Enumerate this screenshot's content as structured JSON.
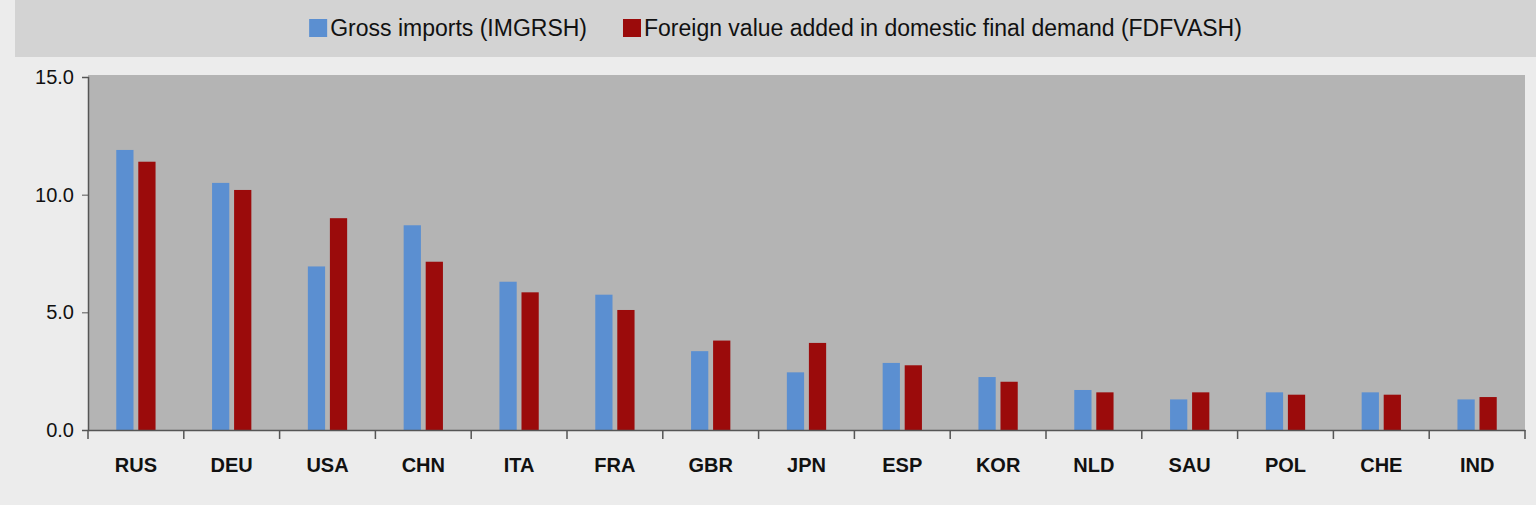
{
  "chart_data": {
    "type": "bar",
    "categories": [
      "RUS",
      "DEU",
      "USA",
      "CHN",
      "ITA",
      "FRA",
      "GBR",
      "JPN",
      "ESP",
      "KOR",
      "NLD",
      "SAU",
      "POL",
      "CHE",
      "IND"
    ],
    "series": [
      {
        "name": "Gross imports (IMGRSH)",
        "color": "#5b8fd1",
        "values": [
          11.9,
          10.5,
          6.95,
          8.7,
          6.3,
          5.75,
          3.35,
          2.45,
          2.85,
          2.25,
          1.7,
          1.3,
          1.6,
          1.6,
          1.3
        ]
      },
      {
        "name": "Foreign value added in domestic final demand (FDFVASH)",
        "color": "#9b0b0b",
        "values": [
          11.4,
          10.2,
          9.0,
          7.15,
          5.85,
          5.1,
          3.8,
          3.7,
          2.75,
          2.05,
          1.6,
          1.6,
          1.5,
          1.5,
          1.4
        ]
      }
    ],
    "ylim": [
      0,
      15
    ],
    "yticks": [
      {
        "value": 0,
        "label": "0.0"
      },
      {
        "value": 5,
        "label": "5.0"
      },
      {
        "value": 10,
        "label": "10.0"
      },
      {
        "value": 15,
        "label": "15.0"
      }
    ],
    "grid": false,
    "legend": "top"
  }
}
